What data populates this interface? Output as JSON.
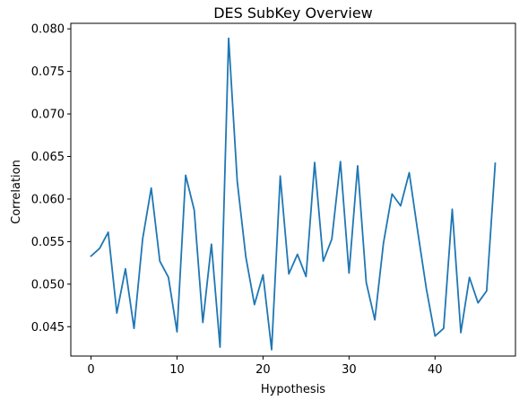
{
  "chart_data": {
    "type": "line",
    "title": "DES SubKey Overview",
    "xlabel": "Hypothesis",
    "ylabel": "Correlation",
    "xlim": [
      -2.35,
      49.35
    ],
    "ylim": [
      0.04155,
      0.08065
    ],
    "xticks": [
      0,
      10,
      20,
      30,
      40
    ],
    "xtick_labels": [
      "0",
      "10",
      "20",
      "30",
      "40"
    ],
    "yticks": [
      0.045,
      0.05,
      0.055,
      0.06,
      0.065,
      0.07,
      0.075,
      0.08
    ],
    "ytick_labels": [
      "0.045",
      "0.050",
      "0.055",
      "0.060",
      "0.065",
      "0.070",
      "0.075",
      "0.080"
    ],
    "grid": false,
    "series": [
      {
        "color": "#1f77b4",
        "x": [
          0,
          1,
          2,
          3,
          4,
          5,
          6,
          7,
          8,
          9,
          10,
          11,
          12,
          13,
          14,
          15,
          16,
          17,
          18,
          19,
          20,
          21,
          22,
          23,
          24,
          25,
          26,
          27,
          28,
          29,
          30,
          31,
          32,
          33,
          34,
          35,
          36,
          37,
          38,
          39,
          40,
          41,
          42,
          43,
          44,
          45,
          46,
          47
        ],
        "values": [
          0.0533,
          0.0542,
          0.0561,
          0.0466,
          0.0518,
          0.0448,
          0.0553,
          0.0613,
          0.0527,
          0.0508,
          0.0444,
          0.0628,
          0.0587,
          0.0455,
          0.0547,
          0.0426,
          0.0789,
          0.0621,
          0.0532,
          0.0476,
          0.0511,
          0.0423,
          0.0627,
          0.0512,
          0.0535,
          0.0509,
          0.0643,
          0.0527,
          0.0553,
          0.0644,
          0.0513,
          0.0639,
          0.0502,
          0.0458,
          0.0548,
          0.0606,
          0.0592,
          0.0631,
          0.0561,
          0.0494,
          0.0439,
          0.0448,
          0.0588,
          0.0443,
          0.0508,
          0.0478,
          0.0492,
          0.0642
        ]
      }
    ]
  }
}
